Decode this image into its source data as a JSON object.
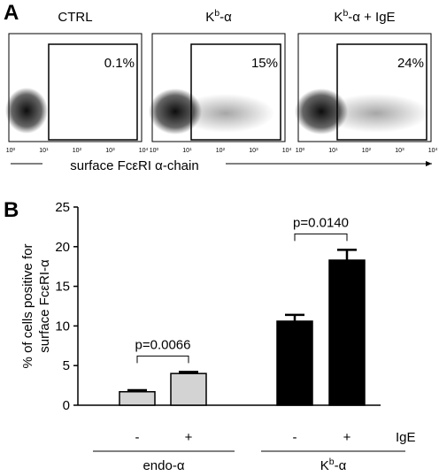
{
  "panel_a": {
    "label": "A",
    "plots": [
      {
        "title": [
          "CTRL"
        ],
        "percent": "0.1%"
      },
      {
        "title": [
          "K",
          {
            "sup": "b"
          },
          "-α"
        ],
        "percent": "15%"
      },
      {
        "title": [
          "K",
          {
            "sup": "b"
          },
          "-α + IgE"
        ],
        "percent": "24%"
      }
    ],
    "xticks": [
      [
        "10",
        {
          "sup": "0"
        }
      ],
      [
        "10",
        {
          "sup": "1"
        }
      ],
      [
        "10",
        {
          "sup": "2"
        }
      ],
      [
        "10",
        {
          "sup": "3"
        }
      ],
      [
        "10",
        {
          "sup": "4"
        }
      ]
    ],
    "xlabel": "surface FcεRI α-chain"
  },
  "chart_data": {
    "type": "bar",
    "label": "B",
    "ylabel": [
      "% of cells positive for",
      "surface FcεRI-α"
    ],
    "ylim": [
      0,
      25
    ],
    "yticks": [
      0,
      5,
      10,
      15,
      20,
      25
    ],
    "x_factor": "IgE",
    "groups": [
      {
        "label": [
          "endo-α"
        ],
        "categories": [
          "-",
          "+"
        ],
        "values": [
          1.7,
          4.0
        ],
        "errors": [
          0.2,
          0.2
        ],
        "color": "#d3d3d3",
        "p_value": "p=0.0066"
      },
      {
        "label": [
          "K",
          {
            "sup": "b"
          },
          "-α"
        ],
        "categories": [
          "-",
          "+"
        ],
        "values": [
          10.6,
          18.3
        ],
        "errors": [
          0.8,
          1.3
        ],
        "color": "#000000",
        "p_value": "p=0.0140"
      }
    ]
  }
}
